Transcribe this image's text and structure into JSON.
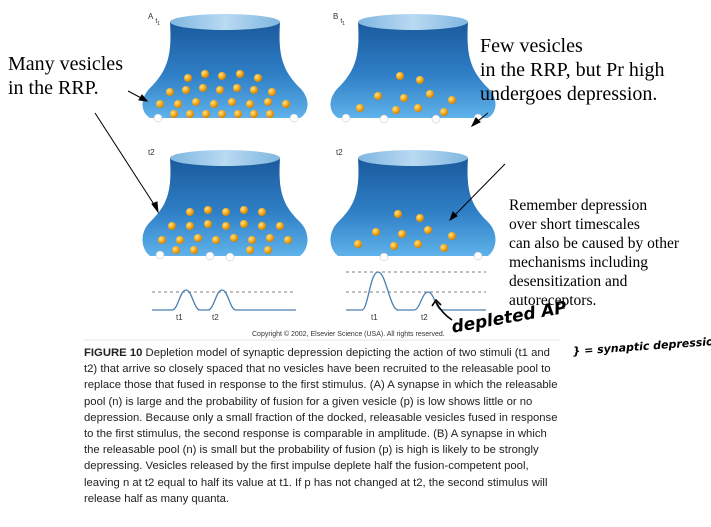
{
  "panels": {
    "a_label": "A",
    "a_sub": "t",
    "a_sub_idx": "1",
    "b_label": "B",
    "b_sub": "t",
    "b_sub_idx": "1",
    "a_t2": "t2",
    "b_t2": "t2"
  },
  "notes": {
    "many_vesicles": "Many vesicles\nin the RRP.",
    "few_vesicles": "Few vesicles\nin the RRP, but Pr high\nundergoes depression.",
    "remember": "Remember depression\nover short timescales\ncan also be caused by other\nmechanisms including\ndesensitization and\nautoreceptors."
  },
  "traces": {
    "a_t1": "t1",
    "a_t2": "t2",
    "b_t1": "t1",
    "b_t2": "t2"
  },
  "copyright": "Copyright © 2002, Elsevier Science (USA). All rights reserved.",
  "handwriting": {
    "depleted_ap": "depleted AP",
    "synaptic_depression": "} = synaptic depression"
  },
  "caption": {
    "label": "FIGURE 10",
    "text": "Depletion model of synaptic depression depicting the action of two stimuli (t1 and t2) that arrive so closely spaced that no vesicles have been recruited to the releasable pool to replace those that fused in response to the first stimulus. (A) A synapse in which the releasable pool (n) is large and the probability of fusion for a given vesicle (p) is low shows little or no depression. Because only a small fraction of the docked, releasable vesicles fused in response to the first stimulus, the second response is comparable in amplitude. (B) A synapse in which the releasable pool (n) is small but the probability of fusion (p) is high is likely to be strongly depressing. Vesicles released by the first impulse deplete half the fusion-competent pool, leaving n at t2 equal to half its value at t1. If p has not changed at t2, the second stimulus will release half as many quanta."
  },
  "colors": {
    "terminal_top": "#1a5fa0",
    "terminal_bottom": "#5aaee6",
    "vesicle": "#f0a418",
    "docked": "#ffffff",
    "trace": "#4a7fb0"
  }
}
